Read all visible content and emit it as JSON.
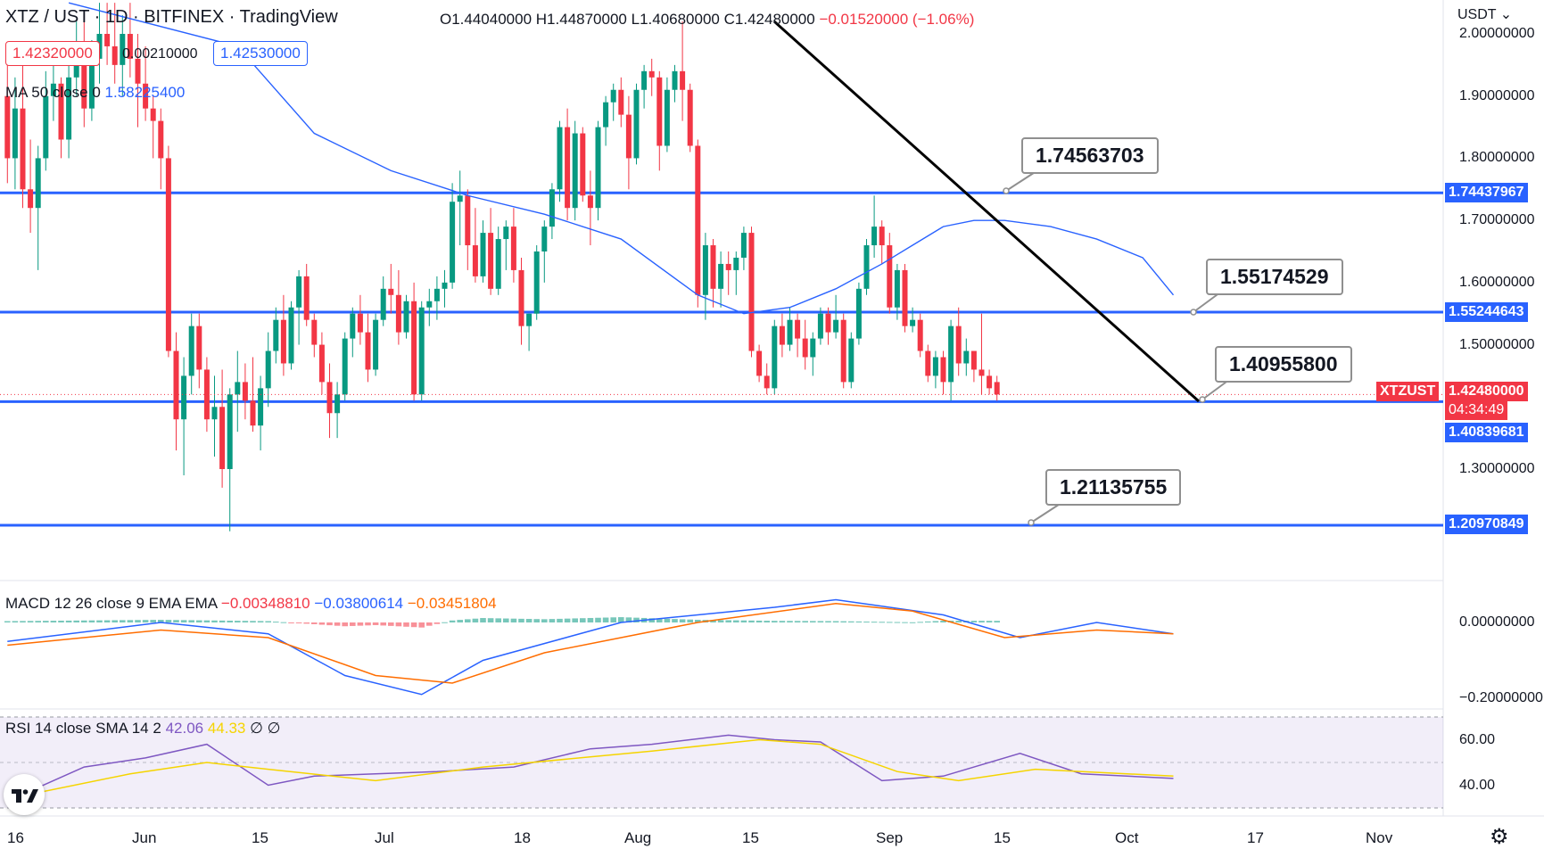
{
  "header": {
    "symbol": "XTZ / UST · 1D · BITFINEX · TradingView",
    "open": "O1.44040000",
    "high": "H1.44870000",
    "low": "L1.40680000",
    "close": "C1.42480000",
    "change": "−0.01520000 (−1.06%)"
  },
  "quote": {
    "bid": "1.42320000",
    "spread": "0.00210000",
    "ask": "1.42530000"
  },
  "indicators": {
    "ma_label": "MA 50 close 0",
    "ma_value": "1.58225400",
    "macd_label": "MACD 12 26 close 9 EMA EMA",
    "macd_hist": "−0.00348810",
    "macd_line": "−0.03800614",
    "macd_signal": "−0.03451804",
    "rsi_label": "RSI 14 close SMA 14 2",
    "rsi_value": "42.06",
    "rsi_sma": "44.33",
    "rsi_extra": "∅ ∅"
  },
  "currency_selector": "USDT",
  "colors": {
    "up": "#089981",
    "down": "#f23645",
    "level": "#2962ff",
    "trend": "#000000",
    "ma": "#2962ff",
    "signal": "#ff6d00",
    "rsi": "#7e57c2",
    "rsi_sma": "#f5d400"
  },
  "callouts": [
    "1.74563703",
    "1.55174529",
    "1.40955800",
    "1.21135755"
  ],
  "price_tags": {
    "level1": "1.74437967",
    "level2": "1.55244643",
    "symbol": "XTZUST",
    "last": "1.42480000",
    "countdown": "04:34:49",
    "level3": "1.40839681",
    "level4": "1.20970849"
  },
  "chart_data": [
    {
      "type": "candlestick",
      "title": "XTZ / UST 1D BITFINEX",
      "yaxis_ticks": [
        "2.00000000",
        "1.90000000",
        "1.80000000",
        "1.70000000",
        "1.60000000",
        "1.50000000",
        "1.30000000"
      ],
      "ylim": [
        1.18,
        2.02
      ],
      "x_ticks": [
        "16",
        "Jun",
        "15",
        "Jul",
        "18",
        "Aug",
        "15",
        "Sep",
        "15",
        "Oct",
        "17",
        "Nov"
      ],
      "horizontal_levels": [
        1.74437967,
        1.55244643,
        1.40839681,
        1.20970849
      ],
      "trendline": {
        "from": [
          "Aug 16",
          2.02
        ],
        "to": [
          "Oct 10",
          1.409
        ]
      },
      "ohlc": [
        [
          1.9,
          1.96,
          1.76,
          1.8
        ],
        [
          1.8,
          1.93,
          1.75,
          1.88
        ],
        [
          1.88,
          1.95,
          1.72,
          1.75
        ],
        [
          1.75,
          1.83,
          1.68,
          1.72
        ],
        [
          1.72,
          1.82,
          1.62,
          1.8
        ],
        [
          1.8,
          1.94,
          1.78,
          1.9
        ],
        [
          1.9,
          1.97,
          1.86,
          1.92
        ],
        [
          1.92,
          1.93,
          1.8,
          1.83
        ],
        [
          1.83,
          1.95,
          1.8,
          1.93
        ],
        [
          1.93,
          2.02,
          1.9,
          1.98
        ],
        [
          1.98,
          2.03,
          1.85,
          1.88
        ],
        [
          1.88,
          1.99,
          1.86,
          1.96
        ],
        [
          1.96,
          2.05,
          1.92,
          2.0
        ],
        [
          2.0,
          2.05,
          1.95,
          1.98
        ],
        [
          1.98,
          2.05,
          1.92,
          1.95
        ],
        [
          1.95,
          2.03,
          1.9,
          2.0
        ],
        [
          2.0,
          2.05,
          1.93,
          1.96
        ],
        [
          1.96,
          2.0,
          1.85,
          1.92
        ],
        [
          1.92,
          1.98,
          1.86,
          1.88
        ],
        [
          1.88,
          1.9,
          1.8,
          1.86
        ],
        [
          1.86,
          1.88,
          1.75,
          1.8
        ],
        [
          1.8,
          1.82,
          1.48,
          1.49
        ],
        [
          1.49,
          1.52,
          1.33,
          1.38
        ],
        [
          1.38,
          1.48,
          1.29,
          1.45
        ],
        [
          1.45,
          1.55,
          1.42,
          1.53
        ],
        [
          1.53,
          1.55,
          1.43,
          1.46
        ],
        [
          1.46,
          1.48,
          1.36,
          1.38
        ],
        [
          1.38,
          1.45,
          1.32,
          1.4
        ],
        [
          1.4,
          1.46,
          1.27,
          1.3
        ],
        [
          1.3,
          1.43,
          1.2,
          1.42
        ],
        [
          1.42,
          1.49,
          1.36,
          1.44
        ],
        [
          1.44,
          1.47,
          1.38,
          1.41
        ],
        [
          1.41,
          1.48,
          1.36,
          1.37
        ],
        [
          1.37,
          1.45,
          1.33,
          1.43
        ],
        [
          1.43,
          1.52,
          1.4,
          1.49
        ],
        [
          1.49,
          1.56,
          1.47,
          1.54
        ],
        [
          1.54,
          1.58,
          1.45,
          1.47
        ],
        [
          1.47,
          1.57,
          1.46,
          1.56
        ],
        [
          1.56,
          1.62,
          1.5,
          1.61
        ],
        [
          1.61,
          1.63,
          1.53,
          1.54
        ],
        [
          1.54,
          1.55,
          1.48,
          1.5
        ],
        [
          1.5,
          1.52,
          1.42,
          1.44
        ],
        [
          1.44,
          1.47,
          1.35,
          1.39
        ],
        [
          1.39,
          1.44,
          1.35,
          1.42
        ],
        [
          1.42,
          1.52,
          1.41,
          1.51
        ],
        [
          1.51,
          1.56,
          1.48,
          1.55
        ],
        [
          1.55,
          1.58,
          1.5,
          1.52
        ],
        [
          1.52,
          1.55,
          1.44,
          1.46
        ],
        [
          1.46,
          1.55,
          1.45,
          1.54
        ],
        [
          1.54,
          1.61,
          1.53,
          1.59
        ],
        [
          1.59,
          1.63,
          1.55,
          1.58
        ],
        [
          1.58,
          1.62,
          1.5,
          1.52
        ],
        [
          1.52,
          1.58,
          1.51,
          1.57
        ],
        [
          1.57,
          1.6,
          1.41,
          1.42
        ],
        [
          1.42,
          1.57,
          1.41,
          1.56
        ],
        [
          1.56,
          1.59,
          1.53,
          1.57
        ],
        [
          1.57,
          1.61,
          1.54,
          1.59
        ],
        [
          1.59,
          1.62,
          1.56,
          1.6
        ],
        [
          1.6,
          1.76,
          1.59,
          1.73
        ],
        [
          1.73,
          1.78,
          1.66,
          1.74
        ],
        [
          1.74,
          1.75,
          1.62,
          1.66
        ],
        [
          1.66,
          1.72,
          1.6,
          1.61
        ],
        [
          1.61,
          1.7,
          1.6,
          1.68
        ],
        [
          1.68,
          1.72,
          1.58,
          1.59
        ],
        [
          1.59,
          1.69,
          1.58,
          1.67
        ],
        [
          1.67,
          1.7,
          1.62,
          1.69
        ],
        [
          1.69,
          1.72,
          1.6,
          1.62
        ],
        [
          1.62,
          1.64,
          1.5,
          1.53
        ],
        [
          1.53,
          1.55,
          1.49,
          1.55
        ],
        [
          1.55,
          1.66,
          1.54,
          1.65
        ],
        [
          1.65,
          1.7,
          1.6,
          1.69
        ],
        [
          1.69,
          1.76,
          1.67,
          1.75
        ],
        [
          1.75,
          1.86,
          1.73,
          1.85
        ],
        [
          1.85,
          1.88,
          1.7,
          1.72
        ],
        [
          1.72,
          1.86,
          1.7,
          1.84
        ],
        [
          1.84,
          1.85,
          1.73,
          1.74
        ],
        [
          1.74,
          1.78,
          1.66,
          1.72
        ],
        [
          1.72,
          1.86,
          1.7,
          1.85
        ],
        [
          1.85,
          1.9,
          1.82,
          1.89
        ],
        [
          1.89,
          1.92,
          1.86,
          1.91
        ],
        [
          1.91,
          1.93,
          1.85,
          1.87
        ],
        [
          1.87,
          1.9,
          1.75,
          1.8
        ],
        [
          1.8,
          1.92,
          1.79,
          1.91
        ],
        [
          1.91,
          1.95,
          1.88,
          1.94
        ],
        [
          1.94,
          1.96,
          1.9,
          1.93
        ],
        [
          1.93,
          1.94,
          1.78,
          1.82
        ],
        [
          1.82,
          1.93,
          1.81,
          1.91
        ],
        [
          1.91,
          1.95,
          1.89,
          1.94
        ],
        [
          1.94,
          2.02,
          1.86,
          1.91
        ],
        [
          1.91,
          1.92,
          1.81,
          1.82
        ],
        [
          1.82,
          1.83,
          1.56,
          1.58
        ],
        [
          1.58,
          1.68,
          1.54,
          1.66
        ],
        [
          1.66,
          1.67,
          1.56,
          1.59
        ],
        [
          1.59,
          1.65,
          1.56,
          1.63
        ],
        [
          1.63,
          1.65,
          1.58,
          1.62
        ],
        [
          1.62,
          1.65,
          1.58,
          1.64
        ],
        [
          1.64,
          1.69,
          1.62,
          1.68
        ],
        [
          1.68,
          1.69,
          1.48,
          1.49
        ],
        [
          1.49,
          1.5,
          1.44,
          1.45
        ],
        [
          1.45,
          1.47,
          1.42,
          1.43
        ],
        [
          1.43,
          1.54,
          1.42,
          1.53
        ],
        [
          1.53,
          1.55,
          1.48,
          1.5
        ],
        [
          1.5,
          1.56,
          1.49,
          1.54
        ],
        [
          1.54,
          1.55,
          1.48,
          1.51
        ],
        [
          1.51,
          1.54,
          1.46,
          1.48
        ],
        [
          1.48,
          1.52,
          1.45,
          1.51
        ],
        [
          1.51,
          1.56,
          1.5,
          1.55
        ],
        [
          1.55,
          1.56,
          1.5,
          1.52
        ],
        [
          1.52,
          1.58,
          1.51,
          1.54
        ],
        [
          1.54,
          1.55,
          1.43,
          1.44
        ],
        [
          1.44,
          1.52,
          1.43,
          1.51
        ],
        [
          1.51,
          1.6,
          1.5,
          1.59
        ],
        [
          1.59,
          1.67,
          1.58,
          1.66
        ],
        [
          1.66,
          1.74,
          1.64,
          1.69
        ],
        [
          1.69,
          1.7,
          1.63,
          1.66
        ],
        [
          1.66,
          1.68,
          1.55,
          1.56
        ],
        [
          1.56,
          1.63,
          1.54,
          1.62
        ],
        [
          1.62,
          1.63,
          1.52,
          1.53
        ],
        [
          1.53,
          1.56,
          1.52,
          1.54
        ],
        [
          1.54,
          1.55,
          1.48,
          1.49
        ],
        [
          1.49,
          1.5,
          1.44,
          1.45
        ],
        [
          1.45,
          1.49,
          1.43,
          1.48
        ],
        [
          1.48,
          1.49,
          1.42,
          1.44
        ],
        [
          1.44,
          1.54,
          1.41,
          1.53
        ],
        [
          1.53,
          1.56,
          1.45,
          1.47
        ],
        [
          1.47,
          1.51,
          1.45,
          1.49
        ],
        [
          1.49,
          1.49,
          1.44,
          1.46
        ],
        [
          1.46,
          1.55,
          1.42,
          1.45
        ],
        [
          1.45,
          1.46,
          1.42,
          1.43
        ],
        [
          1.44,
          1.45,
          1.41,
          1.42
        ]
      ],
      "ma50": [
        [
          8,
          2.05
        ],
        [
          30,
          1.98
        ],
        [
          40,
          1.84
        ],
        [
          50,
          1.78
        ],
        [
          60,
          1.74
        ],
        [
          70,
          1.71
        ],
        [
          80,
          1.67
        ],
        [
          90,
          1.58
        ],
        [
          96,
          1.55
        ],
        [
          102,
          1.56
        ],
        [
          108,
          1.59
        ],
        [
          114,
          1.63
        ],
        [
          118,
          1.66
        ],
        [
          122,
          1.69
        ],
        [
          126,
          1.7
        ],
        [
          130,
          1.7
        ],
        [
          136,
          1.69
        ],
        [
          142,
          1.67
        ],
        [
          148,
          1.64
        ],
        [
          152,
          1.58
        ]
      ]
    },
    {
      "type": "macd",
      "yaxis_ticks": [
        "0.00000000",
        "−0.20000000"
      ],
      "ylim": [
        -0.25,
        0.07
      ],
      "macd": [
        [
          0,
          -0.05
        ],
        [
          20,
          0.0
        ],
        [
          34,
          -0.03
        ],
        [
          44,
          -0.14
        ],
        [
          54,
          -0.19
        ],
        [
          62,
          -0.1
        ],
        [
          80,
          0.0
        ],
        [
          100,
          0.04
        ],
        [
          108,
          0.06
        ],
        [
          122,
          0.02
        ],
        [
          132,
          -0.04
        ],
        [
          142,
          0.0
        ],
        [
          152,
          -0.03
        ]
      ],
      "signal": [
        [
          0,
          -0.06
        ],
        [
          20,
          -0.02
        ],
        [
          34,
          -0.04
        ],
        [
          48,
          -0.14
        ],
        [
          58,
          -0.16
        ],
        [
          70,
          -0.08
        ],
        [
          90,
          0.0
        ],
        [
          108,
          0.05
        ],
        [
          118,
          0.03
        ],
        [
          130,
          -0.04
        ],
        [
          142,
          -0.02
        ],
        [
          152,
          -0.03
        ]
      ]
    },
    {
      "type": "rsi",
      "yaxis_ticks": [
        "60.00",
        "40.00"
      ],
      "ylim": [
        30,
        70
      ],
      "rsi": [
        [
          0,
          33
        ],
        [
          10,
          48
        ],
        [
          18,
          52
        ],
        [
          26,
          58
        ],
        [
          34,
          40
        ],
        [
          40,
          44
        ],
        [
          48,
          45
        ],
        [
          56,
          46
        ],
        [
          66,
          48
        ],
        [
          76,
          56
        ],
        [
          84,
          58
        ],
        [
          94,
          62
        ],
        [
          100,
          60
        ],
        [
          106,
          59
        ],
        [
          114,
          42
        ],
        [
          122,
          44
        ],
        [
          132,
          54
        ],
        [
          140,
          45
        ],
        [
          152,
          43
        ]
      ],
      "sma": [
        [
          0,
          34
        ],
        [
          16,
          45
        ],
        [
          26,
          50
        ],
        [
          34,
          47
        ],
        [
          48,
          42
        ],
        [
          62,
          48
        ],
        [
          84,
          55
        ],
        [
          98,
          60
        ],
        [
          106,
          58
        ],
        [
          116,
          46
        ],
        [
          124,
          42
        ],
        [
          134,
          47
        ],
        [
          152,
          44
        ]
      ]
    }
  ]
}
